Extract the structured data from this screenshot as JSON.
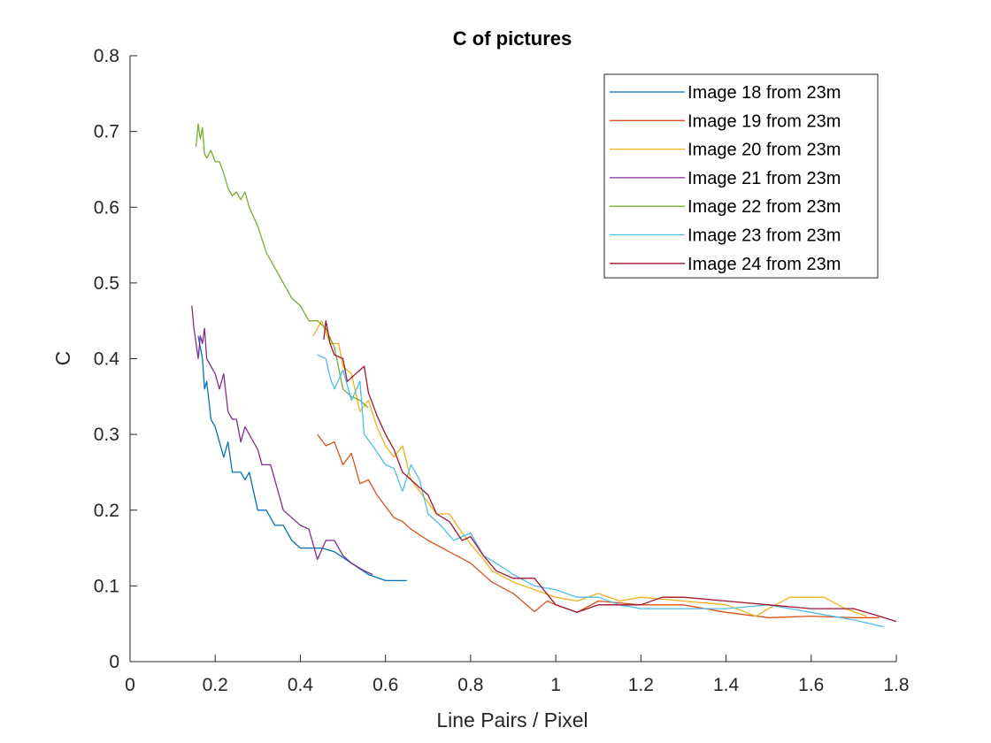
{
  "chart_data": {
    "type": "line",
    "title": "C of pictures",
    "xlabel": "Line Pairs / Pixel",
    "ylabel": "C",
    "xlim": [
      0,
      1.8
    ],
    "ylim": [
      0,
      0.8
    ],
    "xticks": [
      "0",
      "0.2",
      "0.4",
      "0.6",
      "0.8",
      "1",
      "1.2",
      "1.4",
      "1.6",
      "1.8"
    ],
    "yticks": [
      "0",
      "0.1",
      "0.2",
      "0.3",
      "0.4",
      "0.5",
      "0.6",
      "0.7",
      "0.8"
    ],
    "grid": false,
    "legend_position": "top-right",
    "series": [
      {
        "name": "Image 18 from 23m",
        "color": "#0072BD",
        "points": [
          [
            0.16,
            0.43
          ],
          [
            0.17,
            0.4
          ],
          [
            0.175,
            0.36
          ],
          [
            0.18,
            0.37
          ],
          [
            0.19,
            0.32
          ],
          [
            0.2,
            0.31
          ],
          [
            0.21,
            0.29
          ],
          [
            0.22,
            0.27
          ],
          [
            0.23,
            0.29
          ],
          [
            0.24,
            0.25
          ],
          [
            0.26,
            0.25
          ],
          [
            0.27,
            0.24
          ],
          [
            0.28,
            0.25
          ],
          [
            0.3,
            0.2
          ],
          [
            0.32,
            0.2
          ],
          [
            0.34,
            0.18
          ],
          [
            0.36,
            0.18
          ],
          [
            0.38,
            0.16
          ],
          [
            0.4,
            0.15
          ],
          [
            0.45,
            0.15
          ],
          [
            0.48,
            0.145
          ],
          [
            0.52,
            0.13
          ],
          [
            0.56,
            0.115
          ],
          [
            0.6,
            0.107
          ],
          [
            0.65,
            0.107
          ]
        ]
      },
      {
        "name": "Image 19 from 23m",
        "color": "#D95319",
        "points": [
          [
            0.44,
            0.3
          ],
          [
            0.46,
            0.285
          ],
          [
            0.48,
            0.29
          ],
          [
            0.5,
            0.26
          ],
          [
            0.52,
            0.275
          ],
          [
            0.54,
            0.235
          ],
          [
            0.56,
            0.24
          ],
          [
            0.58,
            0.22
          ],
          [
            0.6,
            0.205
          ],
          [
            0.62,
            0.19
          ],
          [
            0.64,
            0.185
          ],
          [
            0.66,
            0.175
          ],
          [
            0.7,
            0.16
          ],
          [
            0.75,
            0.145
          ],
          [
            0.8,
            0.13
          ],
          [
            0.85,
            0.105
          ],
          [
            0.9,
            0.09
          ],
          [
            0.95,
            0.066
          ],
          [
            0.98,
            0.08
          ],
          [
            1.0,
            0.075
          ],
          [
            1.05,
            0.065
          ],
          [
            1.1,
            0.08
          ],
          [
            1.2,
            0.075
          ],
          [
            1.3,
            0.075
          ],
          [
            1.4,
            0.065
          ],
          [
            1.5,
            0.058
          ],
          [
            1.6,
            0.06
          ],
          [
            1.7,
            0.058
          ],
          [
            1.76,
            0.058
          ]
        ]
      },
      {
        "name": "Image 20 from 23m",
        "color": "#EDB120",
        "points": [
          [
            0.43,
            0.43
          ],
          [
            0.45,
            0.45
          ],
          [
            0.47,
            0.42
          ],
          [
            0.49,
            0.42
          ],
          [
            0.5,
            0.39
          ],
          [
            0.52,
            0.38
          ],
          [
            0.54,
            0.33
          ],
          [
            0.56,
            0.345
          ],
          [
            0.58,
            0.31
          ],
          [
            0.6,
            0.285
          ],
          [
            0.62,
            0.27
          ],
          [
            0.64,
            0.285
          ],
          [
            0.66,
            0.24
          ],
          [
            0.68,
            0.225
          ],
          [
            0.7,
            0.21
          ],
          [
            0.72,
            0.195
          ],
          [
            0.75,
            0.195
          ],
          [
            0.78,
            0.17
          ],
          [
            0.8,
            0.155
          ],
          [
            0.83,
            0.135
          ],
          [
            0.85,
            0.12
          ],
          [
            0.9,
            0.105
          ],
          [
            0.95,
            0.095
          ],
          [
            1.0,
            0.085
          ],
          [
            1.05,
            0.08
          ],
          [
            1.1,
            0.09
          ],
          [
            1.15,
            0.08
          ],
          [
            1.2,
            0.085
          ],
          [
            1.3,
            0.08
          ],
          [
            1.4,
            0.075
          ],
          [
            1.47,
            0.06
          ],
          [
            1.5,
            0.07
          ],
          [
            1.55,
            0.085
          ],
          [
            1.63,
            0.085
          ],
          [
            1.68,
            0.07
          ],
          [
            1.73,
            0.06
          ]
        ]
      },
      {
        "name": "Image 21 from 23m",
        "color": "#7E2F8E",
        "points": [
          [
            0.145,
            0.47
          ],
          [
            0.15,
            0.44
          ],
          [
            0.16,
            0.4
          ],
          [
            0.165,
            0.43
          ],
          [
            0.17,
            0.42
          ],
          [
            0.175,
            0.44
          ],
          [
            0.18,
            0.4
          ],
          [
            0.19,
            0.39
          ],
          [
            0.2,
            0.38
          ],
          [
            0.21,
            0.36
          ],
          [
            0.22,
            0.38
          ],
          [
            0.23,
            0.33
          ],
          [
            0.24,
            0.32
          ],
          [
            0.25,
            0.32
          ],
          [
            0.26,
            0.29
          ],
          [
            0.27,
            0.31
          ],
          [
            0.28,
            0.3
          ],
          [
            0.3,
            0.28
          ],
          [
            0.31,
            0.26
          ],
          [
            0.33,
            0.26
          ],
          [
            0.34,
            0.24
          ],
          [
            0.36,
            0.2
          ],
          [
            0.38,
            0.19
          ],
          [
            0.4,
            0.18
          ],
          [
            0.42,
            0.175
          ],
          [
            0.44,
            0.135
          ],
          [
            0.46,
            0.16
          ],
          [
            0.48,
            0.16
          ],
          [
            0.5,
            0.14
          ],
          [
            0.52,
            0.13
          ],
          [
            0.55,
            0.12
          ],
          [
            0.57,
            0.115
          ]
        ]
      },
      {
        "name": "Image 22 from 23m",
        "color": "#77AC30",
        "points": [
          [
            0.155,
            0.68
          ],
          [
            0.16,
            0.71
          ],
          [
            0.165,
            0.69
          ],
          [
            0.17,
            0.705
          ],
          [
            0.175,
            0.67
          ],
          [
            0.18,
            0.665
          ],
          [
            0.19,
            0.675
          ],
          [
            0.2,
            0.66
          ],
          [
            0.21,
            0.66
          ],
          [
            0.22,
            0.645
          ],
          [
            0.23,
            0.625
          ],
          [
            0.24,
            0.615
          ],
          [
            0.25,
            0.62
          ],
          [
            0.26,
            0.61
          ],
          [
            0.27,
            0.62
          ],
          [
            0.28,
            0.6
          ],
          [
            0.3,
            0.575
          ],
          [
            0.32,
            0.54
          ],
          [
            0.34,
            0.52
          ],
          [
            0.36,
            0.5
          ],
          [
            0.38,
            0.48
          ],
          [
            0.4,
            0.47
          ],
          [
            0.42,
            0.45
          ],
          [
            0.44,
            0.45
          ],
          [
            0.46,
            0.44
          ],
          [
            0.48,
            0.415
          ],
          [
            0.5,
            0.36
          ],
          [
            0.52,
            0.35
          ],
          [
            0.54,
            0.345
          ],
          [
            0.56,
            0.335
          ]
        ]
      },
      {
        "name": "Image 23 from 23m",
        "color": "#4DBEEE",
        "points": [
          [
            0.44,
            0.405
          ],
          [
            0.46,
            0.4
          ],
          [
            0.47,
            0.375
          ],
          [
            0.48,
            0.36
          ],
          [
            0.5,
            0.385
          ],
          [
            0.52,
            0.345
          ],
          [
            0.54,
            0.37
          ],
          [
            0.55,
            0.3
          ],
          [
            0.57,
            0.285
          ],
          [
            0.6,
            0.26
          ],
          [
            0.62,
            0.255
          ],
          [
            0.64,
            0.225
          ],
          [
            0.66,
            0.26
          ],
          [
            0.68,
            0.24
          ],
          [
            0.7,
            0.195
          ],
          [
            0.73,
            0.18
          ],
          [
            0.76,
            0.16
          ],
          [
            0.8,
            0.17
          ],
          [
            0.83,
            0.14
          ],
          [
            0.86,
            0.13
          ],
          [
            0.9,
            0.115
          ],
          [
            0.95,
            0.1
          ],
          [
            1.0,
            0.095
          ],
          [
            1.05,
            0.085
          ],
          [
            1.1,
            0.085
          ],
          [
            1.15,
            0.075
          ],
          [
            1.2,
            0.07
          ],
          [
            1.3,
            0.07
          ],
          [
            1.4,
            0.07
          ],
          [
            1.5,
            0.075
          ],
          [
            1.6,
            0.065
          ],
          [
            1.7,
            0.055
          ],
          [
            1.77,
            0.046
          ]
        ]
      },
      {
        "name": "Image 24 from 23m",
        "color": "#A2142F",
        "points": [
          [
            0.455,
            0.425
          ],
          [
            0.46,
            0.45
          ],
          [
            0.47,
            0.42
          ],
          [
            0.48,
            0.405
          ],
          [
            0.5,
            0.4
          ],
          [
            0.51,
            0.37
          ],
          [
            0.53,
            0.38
          ],
          [
            0.55,
            0.39
          ],
          [
            0.56,
            0.355
          ],
          [
            0.58,
            0.325
          ],
          [
            0.6,
            0.3
          ],
          [
            0.62,
            0.28
          ],
          [
            0.64,
            0.25
          ],
          [
            0.66,
            0.24
          ],
          [
            0.7,
            0.22
          ],
          [
            0.72,
            0.195
          ],
          [
            0.75,
            0.185
          ],
          [
            0.78,
            0.16
          ],
          [
            0.8,
            0.165
          ],
          [
            0.83,
            0.14
          ],
          [
            0.86,
            0.12
          ],
          [
            0.9,
            0.11
          ],
          [
            0.95,
            0.11
          ],
          [
            1.0,
            0.075
          ],
          [
            1.05,
            0.065
          ],
          [
            1.1,
            0.075
          ],
          [
            1.15,
            0.075
          ],
          [
            1.2,
            0.075
          ],
          [
            1.25,
            0.085
          ],
          [
            1.3,
            0.085
          ],
          [
            1.4,
            0.08
          ],
          [
            1.5,
            0.075
          ],
          [
            1.6,
            0.07
          ],
          [
            1.7,
            0.07
          ],
          [
            1.76,
            0.06
          ],
          [
            1.8,
            0.053
          ]
        ]
      }
    ]
  }
}
